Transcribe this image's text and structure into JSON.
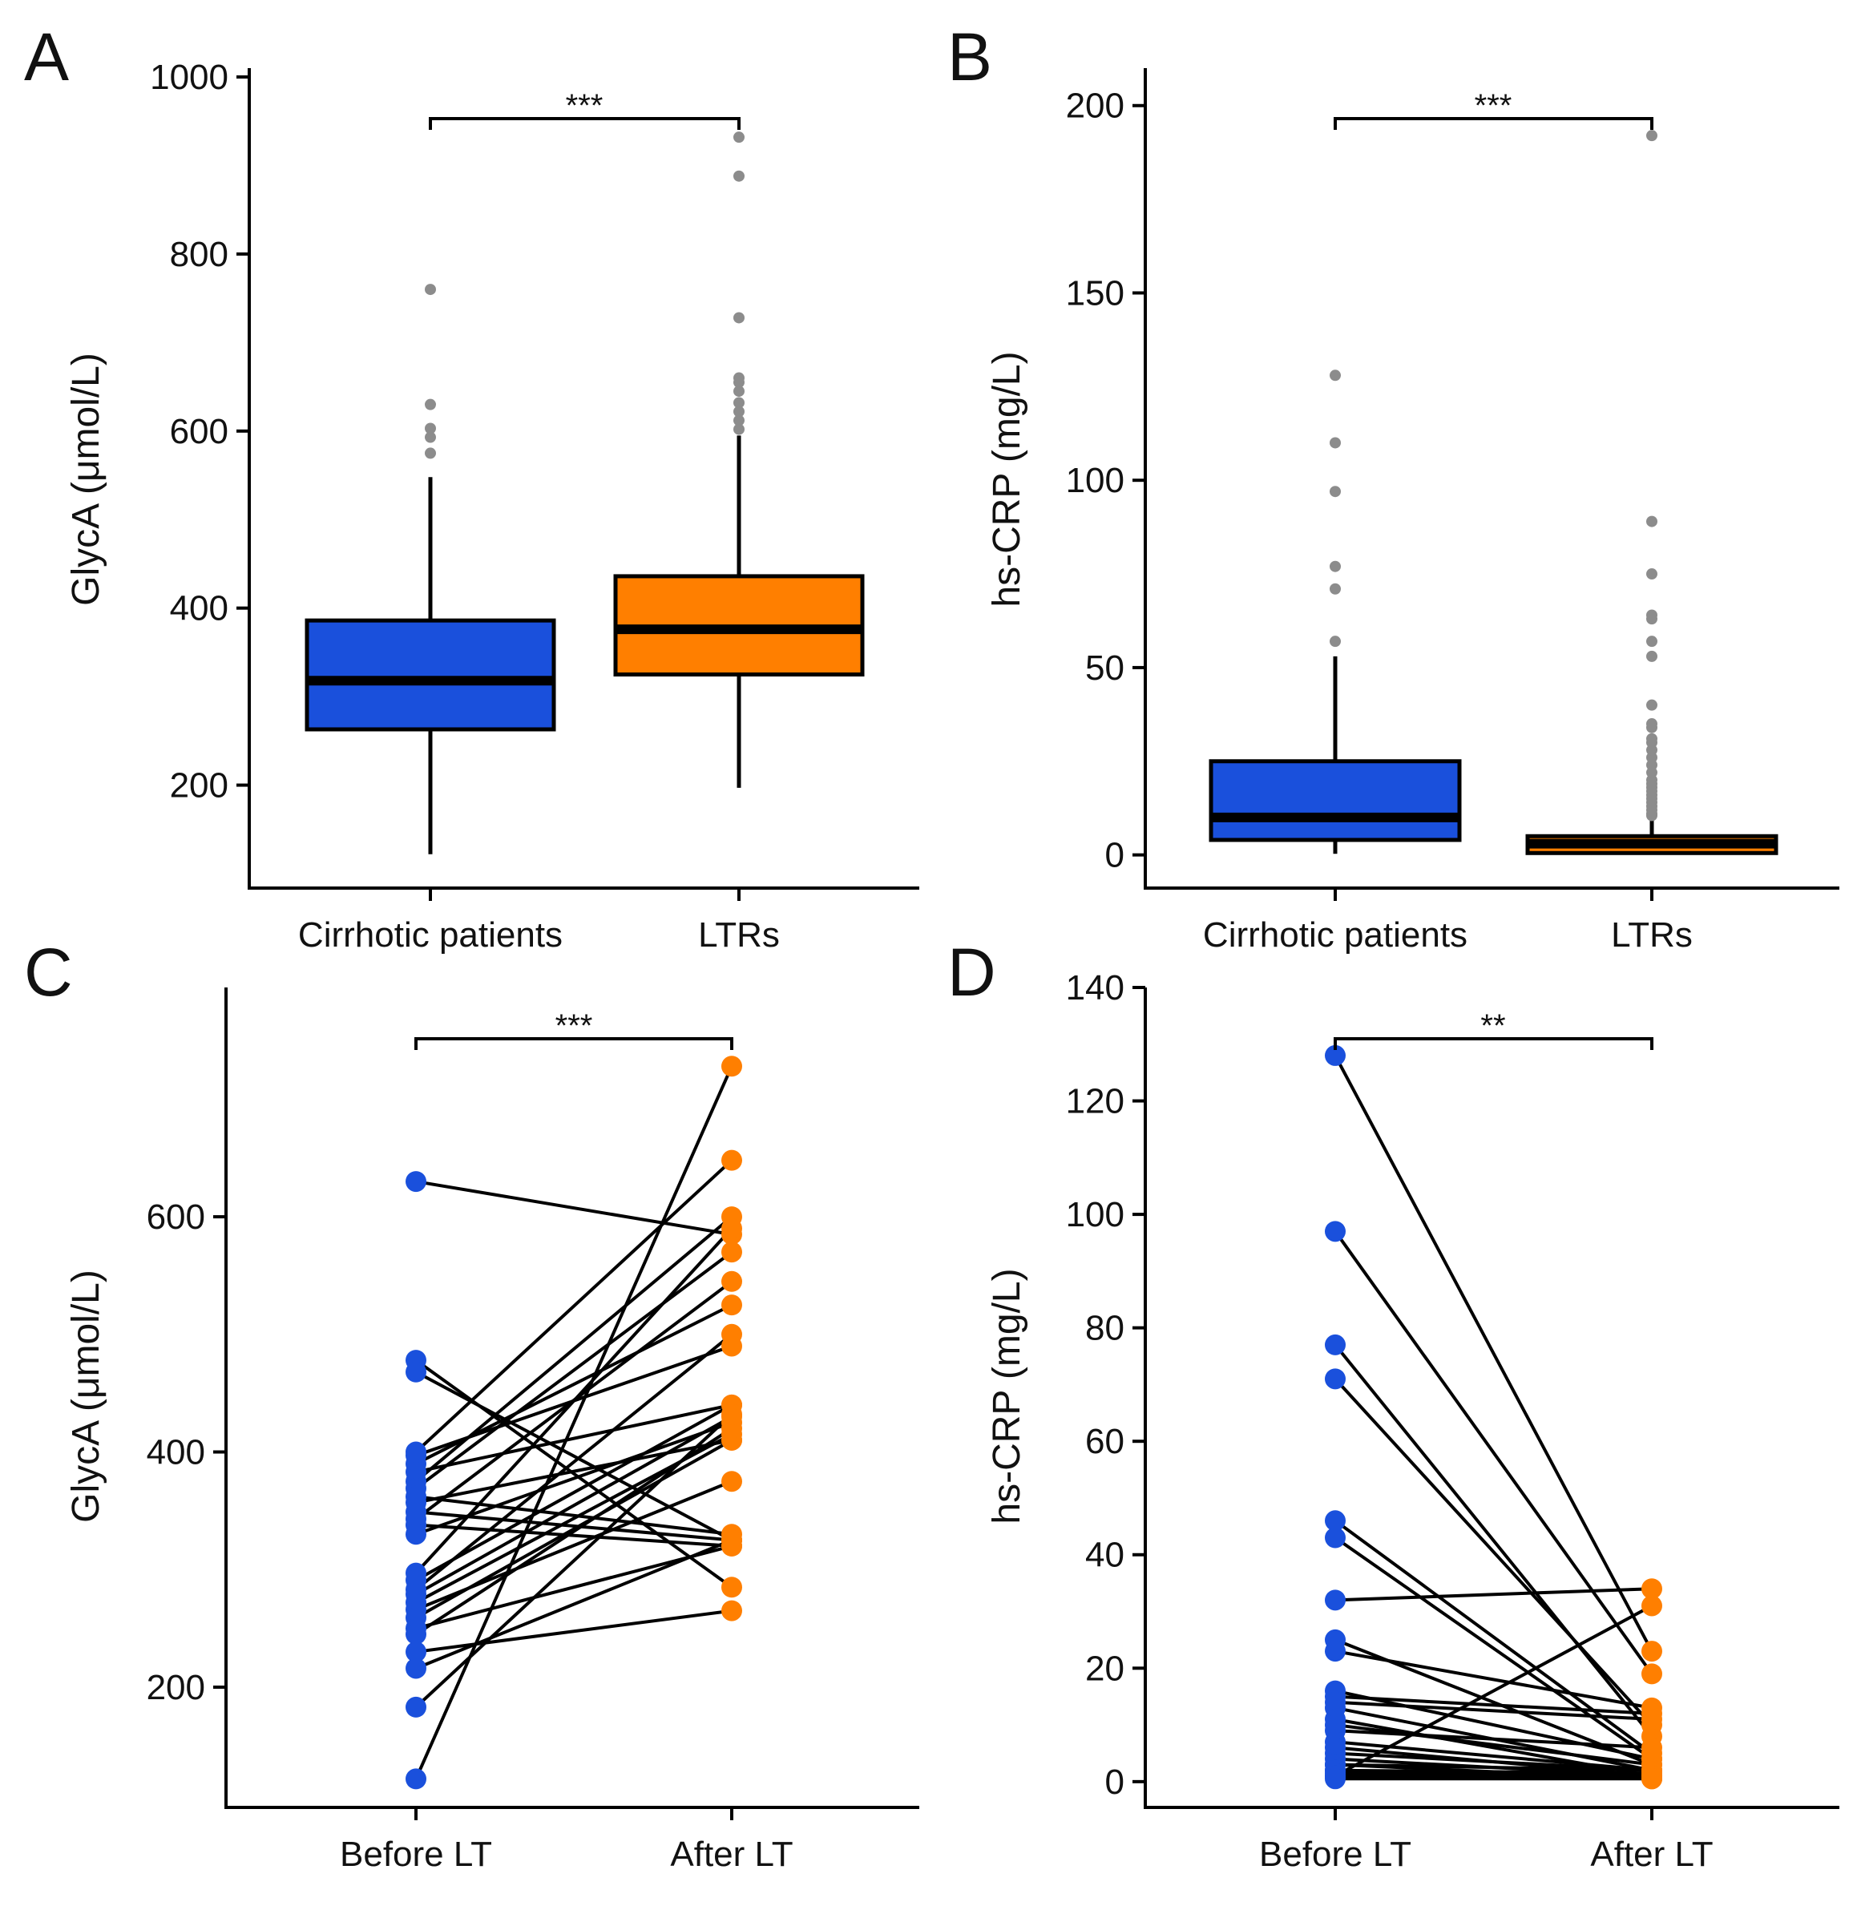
{
  "colors": {
    "cirrhotic": "#1a50dc",
    "ltr": "#ff7f00",
    "outlier": "#8c8c8c"
  },
  "chart_data": [
    {
      "panel": "A",
      "type": "box",
      "ylabel": "GlycA (μmol/L)",
      "xlabel": "",
      "categories": [
        "Cirrhotic patients",
        "LTRs"
      ],
      "yticks": [
        200,
        400,
        600,
        800,
        1000
      ],
      "ylim": [
        100,
        1010
      ],
      "significance": "***",
      "boxes": [
        {
          "category": "Cirrhotic patients",
          "min": 122,
          "q1": 263,
          "median": 318,
          "q3": 386,
          "max": 548,
          "outliers": [
            575,
            593,
            603,
            630,
            760
          ],
          "color": "#1a50dc"
        },
        {
          "category": "LTRs",
          "min": 197,
          "q1": 325,
          "median": 376,
          "q3": 436,
          "max": 595,
          "outliers": [
            602,
            612,
            622,
            632,
            645,
            655,
            660,
            728,
            888,
            932
          ],
          "color": "#ff7f00"
        }
      ]
    },
    {
      "panel": "B",
      "type": "box",
      "ylabel": "hs-CRP (mg/L)",
      "xlabel": "",
      "categories": [
        "Cirrhotic patients",
        "LTRs"
      ],
      "yticks": [
        0,
        50,
        100,
        150,
        200
      ],
      "ylim": [
        -5,
        210
      ],
      "significance": "***",
      "boxes": [
        {
          "category": "Cirrhotic patients",
          "min": 0.3,
          "q1": 4,
          "median": 10,
          "q3": 25,
          "max": 53,
          "outliers": [
            57,
            71,
            77,
            97,
            110,
            128
          ],
          "color": "#1a50dc"
        },
        {
          "category": "LTRs",
          "min": 0.1,
          "q1": 0.5,
          "median": 3,
          "q3": 5,
          "max": 10,
          "outliers": [
            10.5,
            11,
            12,
            13,
            14,
            15,
            16,
            17,
            18,
            19,
            20,
            22,
            24,
            26,
            28,
            30,
            31,
            34,
            35,
            40,
            53,
            57,
            63,
            64,
            75,
            89,
            192
          ],
          "color": "#ff7f00"
        }
      ]
    },
    {
      "panel": "C",
      "type": "paired-scatter",
      "ylabel": "GlycA (μmol/L)",
      "xlabel": "",
      "categories": [
        "Before LT",
        "After LT"
      ],
      "yticks": [
        200,
        400,
        600
      ],
      "ylim": [
        110,
        795
      ],
      "significance": "***",
      "pairs": [
        [
          630,
          585
        ],
        [
          478,
          285
        ],
        [
          468,
          325
        ],
        [
          397,
          490
        ],
        [
          390,
          525
        ],
        [
          383,
          440
        ],
        [
          375,
          600
        ],
        [
          369,
          570
        ],
        [
          362,
          330
        ],
        [
          357,
          410
        ],
        [
          349,
          325
        ],
        [
          343,
          545
        ],
        [
          338,
          320
        ],
        [
          330,
          425
        ],
        [
          297,
          590
        ],
        [
          291,
          440
        ],
        [
          283,
          500
        ],
        [
          279,
          430
        ],
        [
          272,
          415
        ],
        [
          266,
          375
        ],
        [
          259,
          410
        ],
        [
          250,
          320
        ],
        [
          245,
          420
        ],
        [
          230,
          265
        ],
        [
          216,
          325
        ],
        [
          183,
          432
        ],
        [
          122,
          728
        ],
        [
          400,
          648
        ]
      ]
    },
    {
      "panel": "D",
      "type": "paired-scatter",
      "ylabel": "hs-CRP (mg/L)",
      "xlabel": "",
      "categories": [
        "Before LT",
        "After LT"
      ],
      "yticks": [
        0,
        20,
        40,
        60,
        80,
        100,
        120,
        140
      ],
      "ylim": [
        -2,
        140
      ],
      "significance": "**",
      "pairs": [
        [
          128,
          23
        ],
        [
          97,
          19
        ],
        [
          77,
          8
        ],
        [
          71,
          10
        ],
        [
          46,
          5
        ],
        [
          43,
          4
        ],
        [
          32,
          34
        ],
        [
          25,
          3
        ],
        [
          23,
          13
        ],
        [
          16,
          4
        ],
        [
          15,
          12
        ],
        [
          14,
          11
        ],
        [
          13,
          2
        ],
        [
          11,
          1
        ],
        [
          10,
          3
        ],
        [
          9,
          6
        ],
        [
          7,
          2
        ],
        [
          6,
          1
        ],
        [
          5,
          2
        ],
        [
          4,
          1
        ],
        [
          3,
          0.5
        ],
        [
          3,
          2
        ],
        [
          2,
          1
        ],
        [
          2,
          1.5
        ],
        [
          1.5,
          0.5
        ],
        [
          1,
          31
        ],
        [
          1,
          1
        ],
        [
          0.5,
          0.5
        ]
      ]
    }
  ]
}
